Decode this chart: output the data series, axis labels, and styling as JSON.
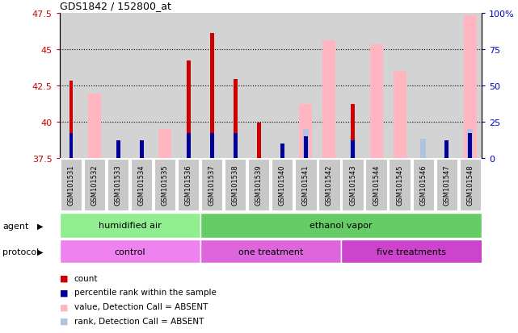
{
  "title": "GDS1842 / 152800_at",
  "samples": [
    "GSM101531",
    "GSM101532",
    "GSM101533",
    "GSM101534",
    "GSM101535",
    "GSM101536",
    "GSM101537",
    "GSM101538",
    "GSM101539",
    "GSM101540",
    "GSM101541",
    "GSM101542",
    "GSM101543",
    "GSM101544",
    "GSM101545",
    "GSM101546",
    "GSM101547",
    "GSM101548"
  ],
  "count_values": [
    42.8,
    null,
    null,
    null,
    null,
    44.2,
    46.1,
    42.9,
    39.9,
    38.0,
    null,
    null,
    41.2,
    null,
    null,
    null,
    null,
    null
  ],
  "rank_values": [
    39.2,
    null,
    38.7,
    38.7,
    null,
    39.2,
    39.2,
    39.2,
    null,
    38.5,
    39.0,
    null,
    38.7,
    null,
    null,
    null,
    38.7,
    39.2
  ],
  "absent_value_values": [
    null,
    41.9,
    null,
    null,
    39.5,
    null,
    null,
    null,
    null,
    null,
    41.2,
    45.6,
    null,
    45.3,
    43.5,
    null,
    null,
    47.3
  ],
  "absent_rank_values": [
    null,
    null,
    null,
    null,
    null,
    null,
    null,
    null,
    null,
    null,
    39.5,
    null,
    39.0,
    null,
    null,
    38.8,
    null,
    39.5
  ],
  "ymin": 37.5,
  "ymax": 47.5,
  "yticks_left": [
    37.5,
    40.0,
    42.5,
    45.0,
    47.5
  ],
  "ytick_labels_left": [
    "37.5",
    "40",
    "42.5",
    "45",
    "47.5"
  ],
  "ytick_labels_right": [
    "0",
    "25",
    "50",
    "75",
    "100%"
  ],
  "count_color": "#cc0000",
  "rank_color": "#000099",
  "absent_value_color": "#ffb6c1",
  "absent_rank_color": "#b0c4de",
  "plot_bg": "#d3d3d3",
  "left_label_color": "#cc0000",
  "right_label_color": "#0000cc",
  "agent_humidified_color": "#90ee90",
  "agent_ethanol_color": "#66cc66",
  "protocol_control_color": "#ee82ee",
  "protocol_one_color": "#dd66dd",
  "protocol_five_color": "#cc44cc",
  "label_box_bg": "#c8c8c8",
  "bar_width": 0.55
}
